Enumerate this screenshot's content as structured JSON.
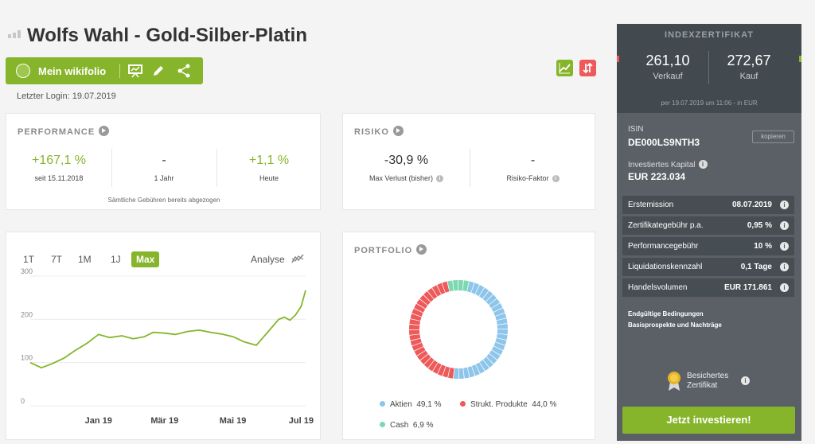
{
  "header": {
    "title": "Wolfs Wahl - Gold-Silber-Platin",
    "toolbar_label": "Mein wikifolio",
    "last_login": "Letzter Login: 19.07.2019"
  },
  "performance": {
    "heading": "PERFORMANCE",
    "kpis": [
      {
        "value": "+167,1 %",
        "label": "seit 15.11.2018"
      },
      {
        "value": "-",
        "label": "1 Jahr"
      },
      {
        "value": "+1,1 %",
        "label": "Heute"
      }
    ],
    "footnote": "Sämtliche Gebühren bereits abgezogen"
  },
  "risk": {
    "heading": "RISIKO",
    "kpis": [
      {
        "value": "-30,9 %",
        "label": "Max Verlust (bisher)"
      },
      {
        "value": "-",
        "label": "Risiko-Faktor"
      }
    ]
  },
  "chart_controls": {
    "ranges": [
      "1T",
      "7T",
      "1M",
      "1J",
      "Max"
    ],
    "active": "Max",
    "analysis_label": "Analyse"
  },
  "chart_data": {
    "type": "line",
    "title": "",
    "xlabel": "",
    "ylabel": "",
    "ylim": [
      0,
      300
    ],
    "yticks": [
      "0",
      "100",
      "200",
      "300"
    ],
    "xticks": [
      "Jan 19",
      "Mär 19",
      "Mai 19",
      "Jul 19"
    ],
    "grid": true,
    "x": [
      "2018-11-15",
      "2018-11-25",
      "2018-12-05",
      "2018-12-15",
      "2018-12-25",
      "2019-01-05",
      "2019-01-15",
      "2019-01-25",
      "2019-02-05",
      "2019-02-15",
      "2019-02-25",
      "2019-03-05",
      "2019-03-15",
      "2019-03-25",
      "2019-04-05",
      "2019-04-15",
      "2019-04-25",
      "2019-05-05",
      "2019-05-15",
      "2019-05-25",
      "2019-06-05",
      "2019-06-10",
      "2019-06-15",
      "2019-06-20",
      "2019-06-25",
      "2019-06-30",
      "2019-07-05",
      "2019-07-10",
      "2019-07-15",
      "2019-07-19"
    ],
    "series": [
      {
        "values": [
          100,
          88,
          98,
          110,
          128,
          145,
          165,
          158,
          162,
          155,
          160,
          170,
          168,
          165,
          172,
          175,
          170,
          166,
          160,
          148,
          140,
          155,
          170,
          185,
          200,
          205,
          198,
          210,
          230,
          267
        ]
      }
    ],
    "line_color": "#86b52b"
  },
  "portfolio": {
    "heading": "PORTFOLIO",
    "chart_data": {
      "type": "pie",
      "categories": [
        "Aktien",
        "Strukt. Produkte",
        "Cash"
      ],
      "values": [
        49.1,
        44.0,
        6.9
      ],
      "colors": [
        "#8ec5ea",
        "#ee5a5a",
        "#7dd8b1"
      ]
    },
    "legend": [
      {
        "name": "Aktien",
        "value": "49,1 %",
        "color": "#8ec5ea"
      },
      {
        "name": "Strukt. Produkte",
        "value": "44,0 %",
        "color": "#ee5a5a"
      },
      {
        "name": "Cash",
        "value": "6,9 %",
        "color": "#7dd8b1"
      }
    ]
  },
  "certificate": {
    "heading": "INDEXZERTIFIKAT",
    "sell_value": "261,10",
    "sell_label": "Verkauf",
    "buy_value": "272,67",
    "buy_label": "Kauf",
    "as_of": "per 19.07.2019 um 11:06 - in EUR",
    "isin_label": "ISIN",
    "isin": "DE000LS9NTH3",
    "copy_label": "kopieren",
    "capital_label": "Investiertes Kapital",
    "capital": "EUR 223.034",
    "rows": [
      {
        "key": "Erstemission",
        "value": "08.07.2019"
      },
      {
        "key": "Zertifikategebühr p.a.",
        "value": "0,95 %"
      },
      {
        "key": "Performancegebühr",
        "value": "10 %"
      },
      {
        "key": "Liquidationskennzahl",
        "value": "0,1 Tage"
      },
      {
        "key": "Handelsvolumen",
        "value": "EUR 171.861"
      }
    ],
    "links": [
      "Endgültige Bedingungen",
      "Basisprospekte und Nachträge"
    ],
    "badge_label_1": "Besichertes",
    "badge_label_2": "Zertifikat",
    "invest_label": "Jetzt investieren!"
  }
}
